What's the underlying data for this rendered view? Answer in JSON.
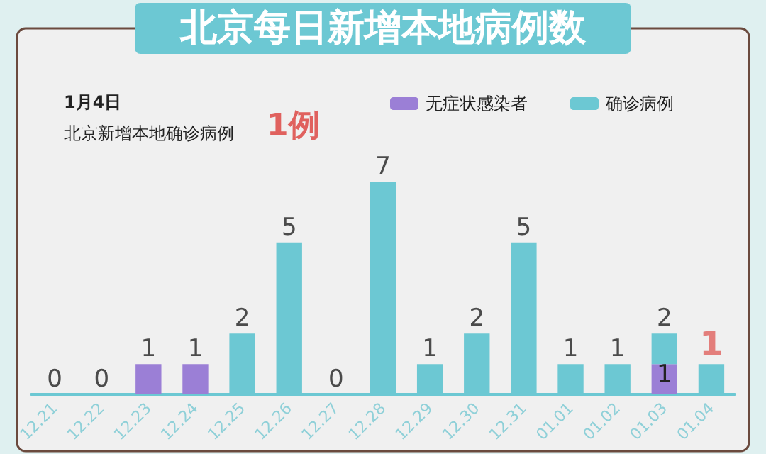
{
  "chart_data": {
    "type": "bar",
    "title": "北京每日新增本地病例数",
    "subtitle": "1月4日",
    "annotations": [
      "北京新增本地确诊病例",
      "1例"
    ],
    "categories": [
      "12.21",
      "12.22",
      "12.23",
      "12.24",
      "12.25",
      "12.26",
      "12.27",
      "12.28",
      "12.29",
      "12.30",
      "12.31",
      "01.01",
      "01.02",
      "01.03",
      "01.04"
    ],
    "stacked": true,
    "series": [
      {
        "name": "无症状感染者",
        "color": "#9b7fd6",
        "values": [
          0,
          0,
          1,
          1,
          0,
          0,
          0,
          0,
          0,
          0,
          0,
          0,
          0,
          1,
          0
        ],
        "value_labels": [
          null,
          null,
          null,
          null,
          null,
          null,
          null,
          null,
          null,
          null,
          null,
          null,
          null,
          "1",
          null
        ]
      },
      {
        "name": "确诊病例",
        "color": "#6cc8d3",
        "values": [
          0,
          0,
          0,
          0,
          2,
          5,
          0,
          7,
          1,
          2,
          5,
          1,
          1,
          1,
          1
        ]
      }
    ],
    "totals": [
      "0",
      "0",
      "1",
      "1",
      "2",
      "5",
      "0",
      "7",
      "1",
      "2",
      "5",
      "1",
      "1",
      "2",
      "1"
    ],
    "legend": "top right",
    "grid": false,
    "tick_labels": "x"
  }
}
